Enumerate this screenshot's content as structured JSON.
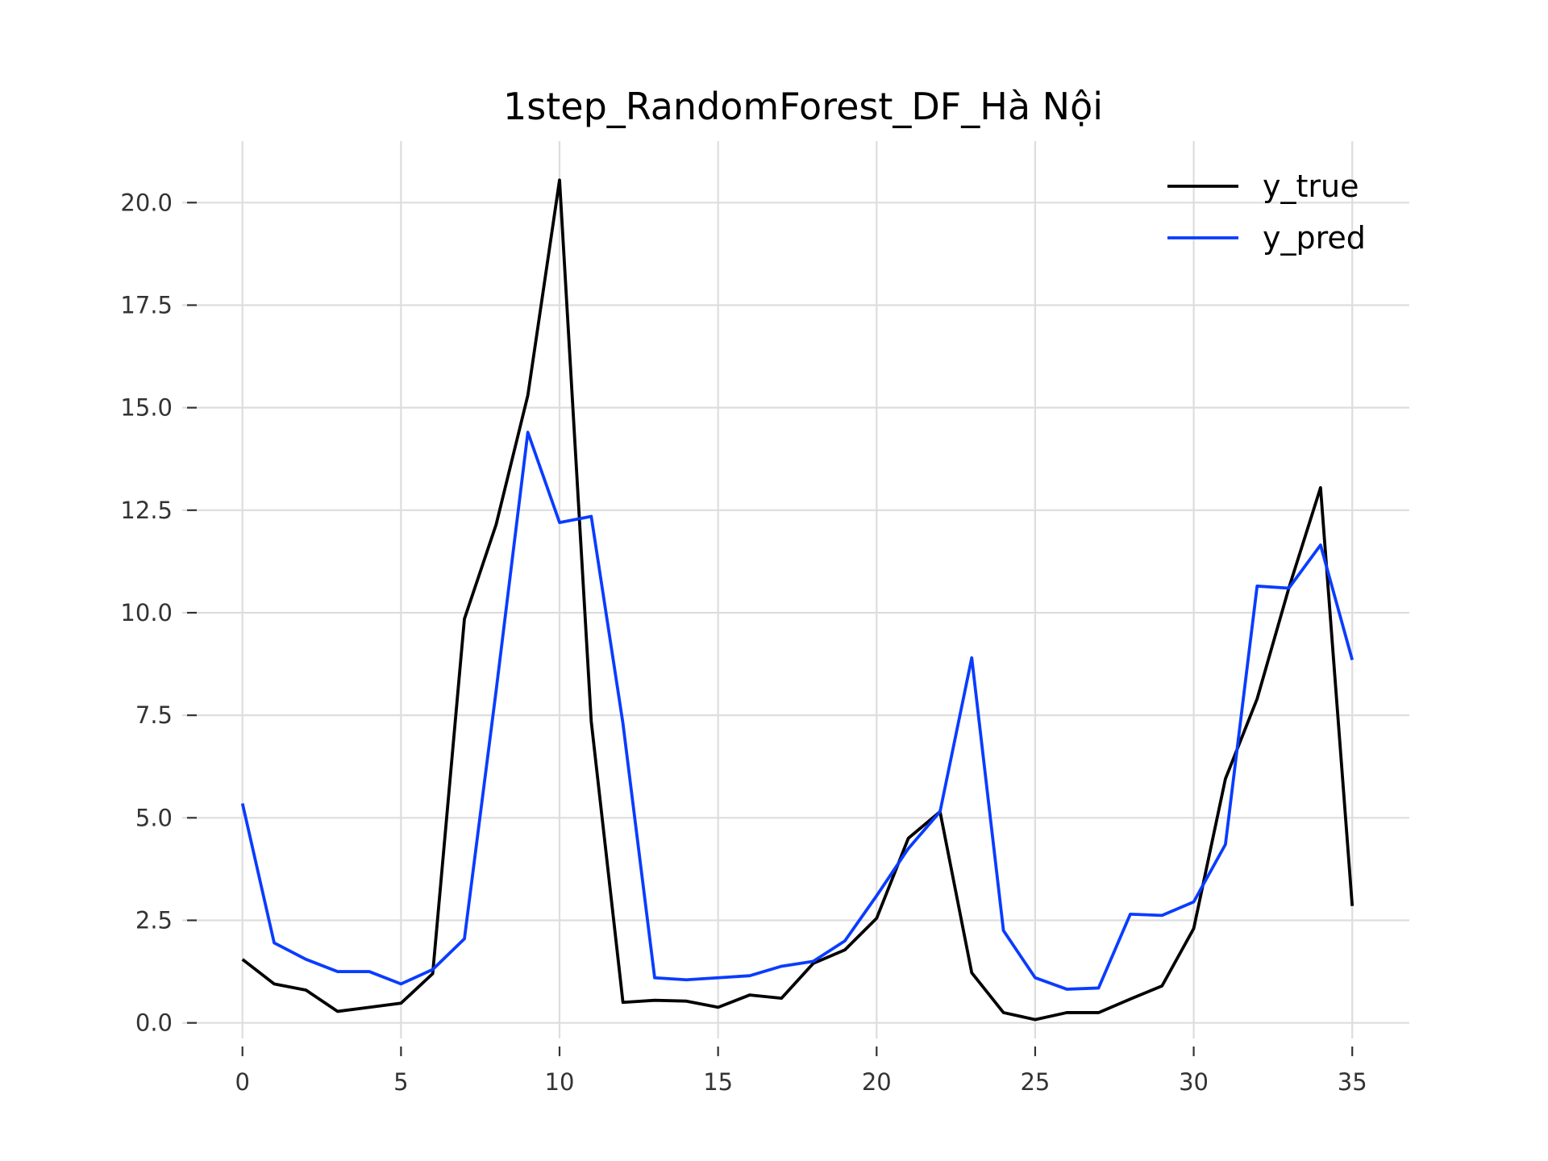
{
  "chart_data": {
    "type": "line",
    "title": "1step_RandomForest_DF_Hà Nội",
    "xlabel": "",
    "ylabel": "",
    "xlim": [
      -1.9,
      36.8
    ],
    "ylim": [
      -0.38,
      21.5
    ],
    "x_ticks": [
      0,
      5,
      10,
      15,
      20,
      25,
      30,
      35
    ],
    "y_ticks": [
      0.0,
      2.5,
      5.0,
      7.5,
      10.0,
      12.5,
      15.0,
      17.5,
      20.0
    ],
    "x_tick_labels": [
      "0",
      "5",
      "10",
      "15",
      "20",
      "25",
      "30",
      "35"
    ],
    "y_tick_labels": [
      "0.0",
      "2.5",
      "5.0",
      "7.5",
      "10.0",
      "12.5",
      "15.0",
      "17.5",
      "20.0"
    ],
    "grid": true,
    "legend_position": "top-right",
    "x": [
      0,
      1,
      2,
      3,
      4,
      5,
      6,
      7,
      8,
      9,
      10,
      11,
      12,
      13,
      14,
      15,
      16,
      17,
      18,
      19,
      20,
      21,
      22,
      23,
      24,
      25,
      26,
      27,
      28,
      29,
      30,
      31,
      32,
      33,
      34,
      35
    ],
    "series": [
      {
        "name": "y_true",
        "color": "#000000",
        "values": [
          1.55,
          0.95,
          0.8,
          0.28,
          0.38,
          0.48,
          1.2,
          9.85,
          12.15,
          15.3,
          20.55,
          7.35,
          0.5,
          0.55,
          0.53,
          0.38,
          0.68,
          0.6,
          1.45,
          1.78,
          2.55,
          4.5,
          5.15,
          1.22,
          0.25,
          0.08,
          0.25,
          0.25,
          0.58,
          0.9,
          2.3,
          5.95,
          7.9,
          10.6,
          13.05,
          2.85
        ]
      },
      {
        "name": "y_pred",
        "color": "#0a3cff",
        "values": [
          5.35,
          1.95,
          1.55,
          1.25,
          1.25,
          0.95,
          1.3,
          2.05,
          8.1,
          14.4,
          12.2,
          12.35,
          7.3,
          1.1,
          1.05,
          1.1,
          1.15,
          1.38,
          1.5,
          2.0,
          3.1,
          4.25,
          5.15,
          8.9,
          2.25,
          1.1,
          0.82,
          0.85,
          2.65,
          2.62,
          2.95,
          4.35,
          10.65,
          10.6,
          11.65,
          8.85
        ]
      }
    ]
  }
}
